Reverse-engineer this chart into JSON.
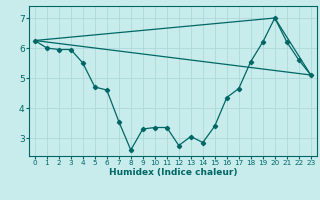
{
  "xlabel": "Humidex (Indice chaleur)",
  "ylabel": "",
  "background_color": "#c8ecec",
  "line_color": "#006666",
  "grid_color": "#aed8d8",
  "xlim": [
    -0.5,
    23.5
  ],
  "ylim": [
    2.4,
    7.4
  ],
  "x_ticks": [
    0,
    1,
    2,
    3,
    4,
    5,
    6,
    7,
    8,
    9,
    10,
    11,
    12,
    13,
    14,
    15,
    16,
    17,
    18,
    19,
    20,
    21,
    22,
    23
  ],
  "y_ticks": [
    3,
    4,
    5,
    6,
    7
  ],
  "curve1_x": [
    0,
    1,
    2,
    3,
    4,
    5,
    6,
    7,
    8,
    9,
    10,
    11,
    12,
    13,
    14,
    15,
    16,
    17,
    18,
    19,
    20,
    21,
    22,
    23
  ],
  "curve1_y": [
    6.25,
    6.0,
    5.95,
    5.95,
    5.5,
    4.7,
    4.6,
    3.55,
    2.6,
    3.3,
    3.35,
    3.35,
    2.75,
    3.05,
    2.85,
    3.4,
    4.35,
    4.65,
    5.55,
    6.2,
    7.0,
    6.2,
    5.6,
    5.1
  ],
  "curve2_x": [
    0,
    20,
    23
  ],
  "curve2_y": [
    6.25,
    7.0,
    5.1
  ],
  "curve3_x": [
    0,
    23
  ],
  "curve3_y": [
    6.25,
    5.1
  ]
}
